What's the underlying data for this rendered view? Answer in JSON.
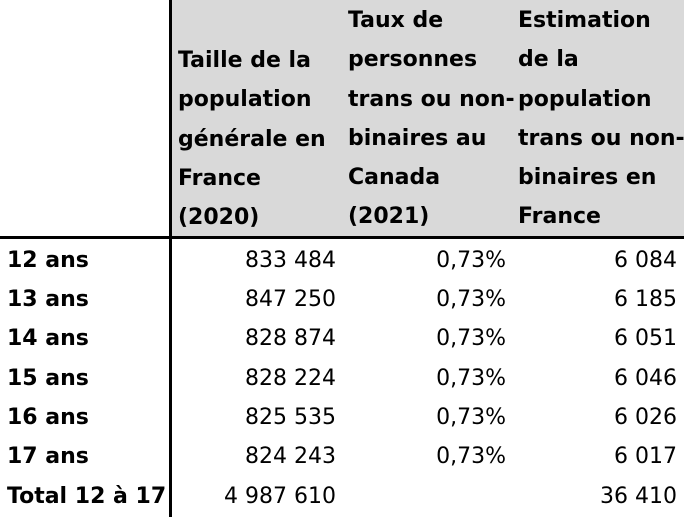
{
  "table": {
    "headers": [
      "Taille de la\npopulation\ngénérale en\nFrance\n(2020)",
      "Taux de\npersonnes\ntrans ou non-\nbinaires au\nCanada\n(2021)",
      "Estimation\nde la\npopulation\ntrans ou non-\nbinaires en\nFrance"
    ],
    "rows": [
      {
        "label": "12 ans",
        "population": "833 484",
        "rate": "0,73%",
        "estimate": "6 084"
      },
      {
        "label": "13 ans",
        "population": "847 250",
        "rate": "0,73%",
        "estimate": "6 185"
      },
      {
        "label": "14 ans",
        "population": "828 874",
        "rate": "0,73%",
        "estimate": "6 051"
      },
      {
        "label": "15 ans",
        "population": "828 224",
        "rate": "0,73%",
        "estimate": "6 046"
      },
      {
        "label": "16 ans",
        "population": "825 535",
        "rate": "0,73%",
        "estimate": "6 026"
      },
      {
        "label": "17 ans",
        "population": "824 243",
        "rate": "0,73%",
        "estimate": "6 017"
      }
    ],
    "total": {
      "label": "Total 12 à 17",
      "population": "4 987 610",
      "rate": "",
      "estimate": "36 410"
    }
  }
}
